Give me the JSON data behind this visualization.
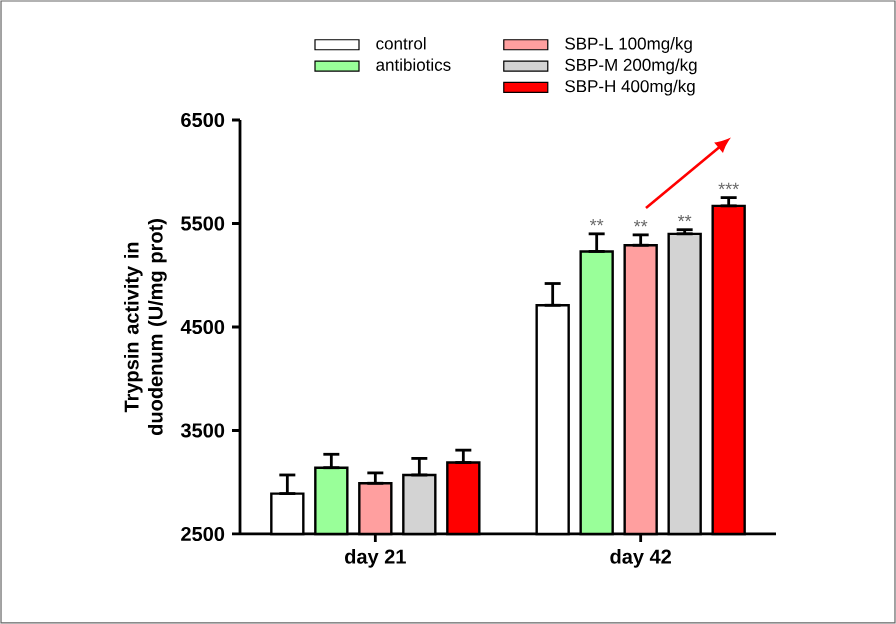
{
  "chart_data": {
    "type": "bar",
    "ylabel": "Trypsin activity in duodenum (U/mg prot)",
    "categories": [
      "day 21",
      "day 42"
    ],
    "series": [
      {
        "name": "control",
        "color": "#ffffff",
        "values": [
          2890,
          4710
        ],
        "errors": [
          [
            2890,
            3070
          ],
          [
            4710,
            4920
          ]
        ],
        "value_labels": [
          null,
          null
        ]
      },
      {
        "name": "antibiotics",
        "color": "#99ff99",
        "values": [
          3140,
          5230
        ],
        "errors": [
          [
            3140,
            3270
          ],
          [
            5230,
            5400
          ]
        ],
        "value_labels": [
          null,
          "**"
        ]
      },
      {
        "name": "SBP-L 100mg/kg",
        "color": "#ff9f9f",
        "values": [
          2990,
          5290
        ],
        "errors": [
          [
            2990,
            3090
          ],
          [
            5290,
            5390
          ]
        ],
        "value_labels": [
          null,
          "**"
        ]
      },
      {
        "name": "SBP-M 200mg/kg",
        "color": "#d3d3d3",
        "values": [
          3070,
          5400
        ],
        "errors": [
          [
            3070,
            3230
          ],
          [
            5400,
            5440
          ]
        ],
        "value_labels": [
          null,
          "**"
        ]
      },
      {
        "name": "SBP-H 400mg/kg",
        "color": "#ff0000",
        "values": [
          3190,
          5670
        ],
        "errors": [
          [
            3190,
            3310
          ],
          [
            5670,
            5750
          ]
        ],
        "value_labels": [
          null,
          "***"
        ]
      }
    ],
    "ylim": [
      2500,
      6500
    ],
    "yticks": [
      2500,
      3500,
      4500,
      5500,
      6500
    ],
    "grid": false,
    "legend": "top"
  }
}
